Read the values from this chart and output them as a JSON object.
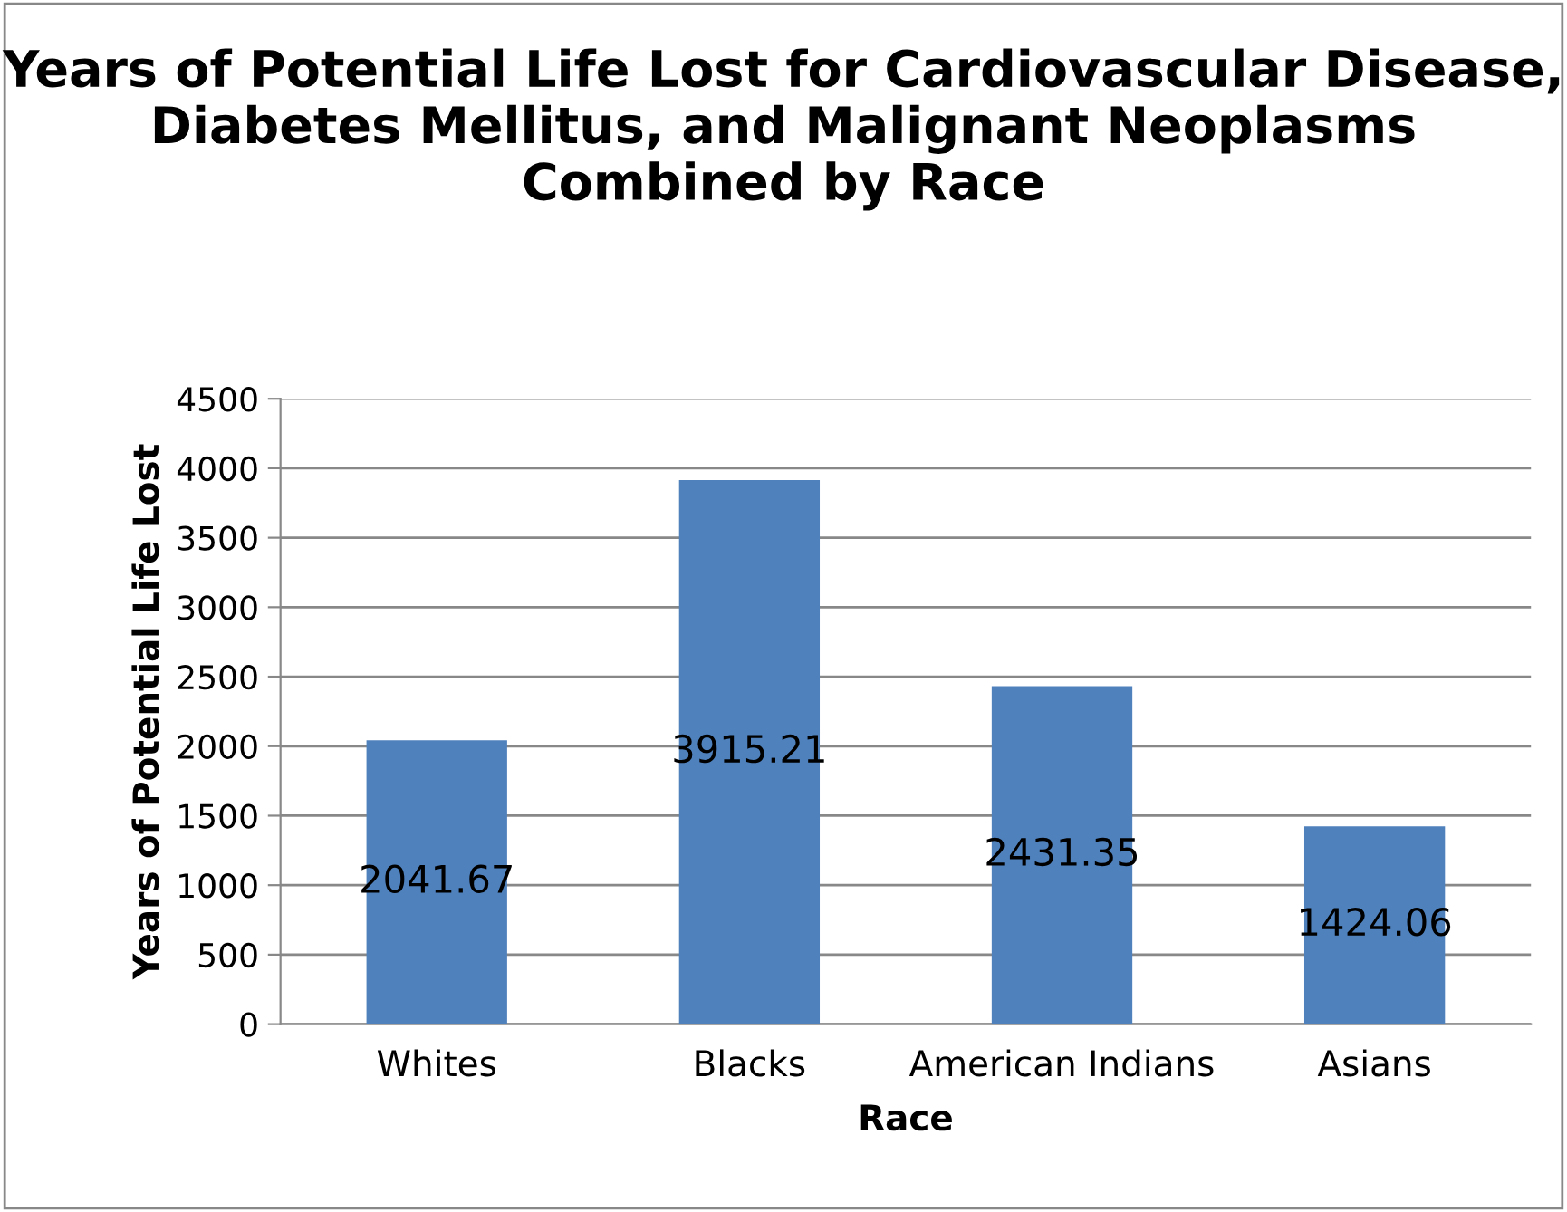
{
  "chart_data": {
    "type": "bar",
    "title": "Years of Potential Life Lost for Cardiovascular Disease, Diabetes Mellitus, and Malignant Neoplasms Combined by Race",
    "xlabel": "Race",
    "ylabel": "Years of Potential Life Lost",
    "categories": [
      "Whites",
      "Blacks",
      "American Indians",
      "Asians"
    ],
    "values": [
      2041.67,
      3915.21,
      2431.35,
      1424.06
    ],
    "color": "#4f81bd",
    "ylim": [
      0,
      4500
    ],
    "yticks": [
      0,
      500,
      1000,
      1500,
      2000,
      2500,
      3000,
      3500,
      4000,
      4500
    ],
    "grid": "y",
    "data_labels": true
  }
}
